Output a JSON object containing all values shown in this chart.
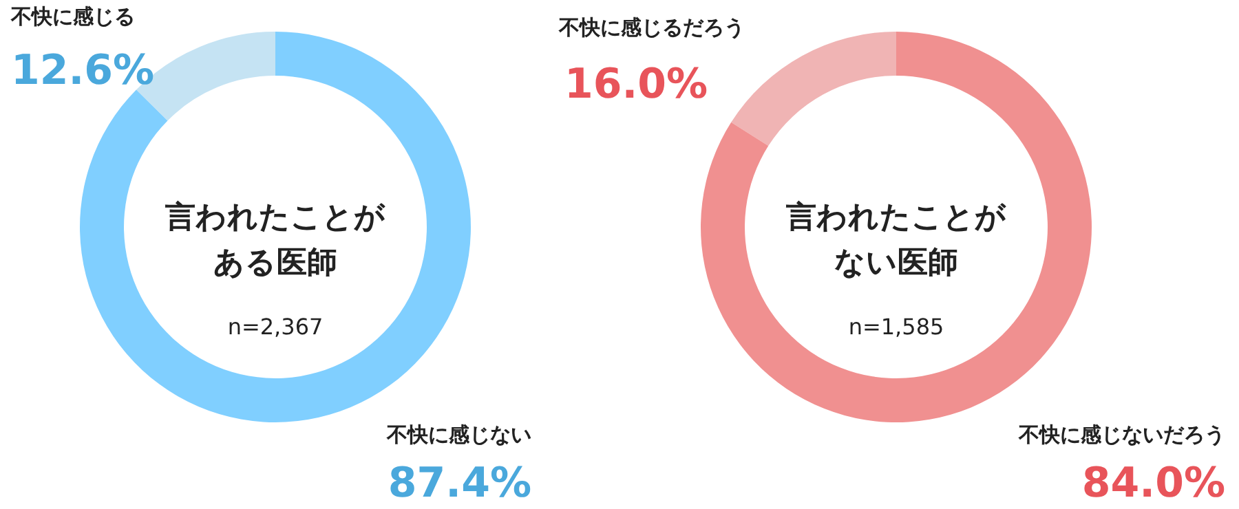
{
  "chart_data": [
    {
      "type": "donut",
      "categories": [
        "不快に感じる",
        "不快に感じない"
      ],
      "values": [
        12.6,
        87.4
      ],
      "colors": [
        "#c5e3f3",
        "#80cfff"
      ],
      "value_labels": [
        "12.6%",
        "87.4%"
      ],
      "annotations": [
        "言われたことが",
        "ある医師",
        "n=2,367"
      ]
    },
    {
      "type": "donut",
      "categories": [
        "不快に感じるだろう",
        "不快に感じないだろう"
      ],
      "values": [
        16.0,
        84.0
      ],
      "colors": [
        "#f0b4b4",
        "#f09090"
      ],
      "value_labels": [
        "16.0%",
        "84.0%"
      ],
      "annotations": [
        "言われたことが",
        "ない医師",
        "n=1,585"
      ]
    }
  ]
}
